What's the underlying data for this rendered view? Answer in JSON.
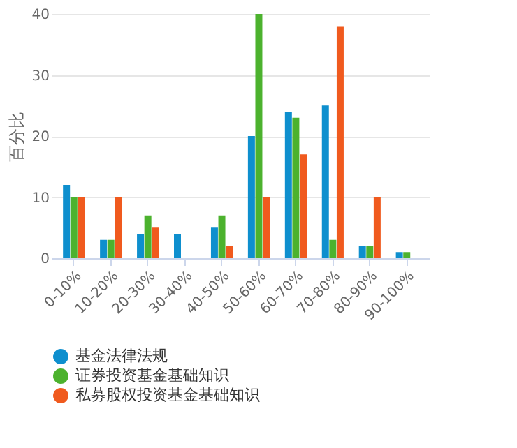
{
  "chart_data": {
    "type": "bar",
    "ylabel": "百分比",
    "categories": [
      "0-10%",
      "10-20%",
      "20-30%",
      "30-40%",
      "40-50%",
      "50-60%",
      "60-70%",
      "70-80%",
      "80-90%",
      "90-100%"
    ],
    "series": [
      {
        "name": "基金法律法规",
        "color": "#0e8fce",
        "values": [
          12,
          3,
          4,
          4,
          5,
          20,
          24,
          25,
          2,
          1
        ]
      },
      {
        "name": "证券投资基金基础知识",
        "color": "#4cb22e",
        "values": [
          10,
          3,
          7,
          0,
          7,
          40,
          23,
          3,
          2,
          1
        ]
      },
      {
        "name": "私募股权投资基金基础知识",
        "color": "#f05a1e",
        "values": [
          10,
          10,
          5,
          0,
          2,
          10,
          17,
          38,
          10,
          0
        ]
      }
    ],
    "ylim": [
      0,
      40
    ],
    "yticks": [
      0,
      10,
      20,
      30,
      40
    ],
    "grid": "y",
    "legend": "bottom",
    "marker": "circle"
  }
}
